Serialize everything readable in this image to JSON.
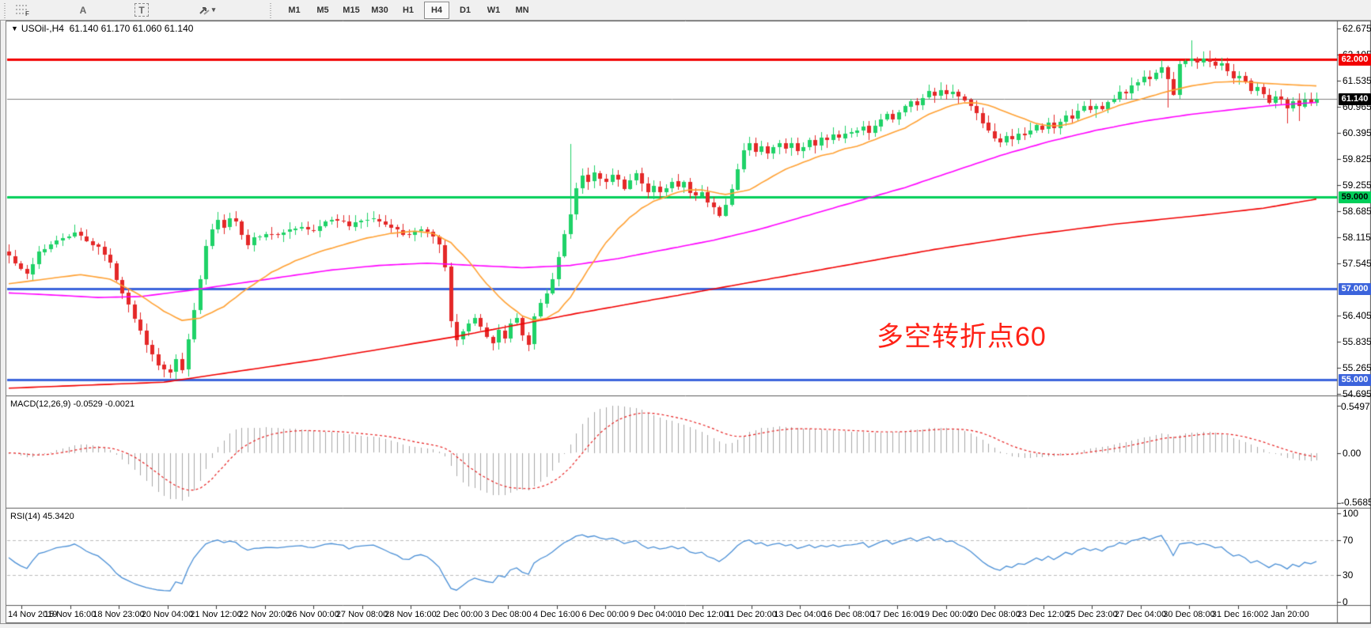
{
  "toolbar": {
    "tools": [
      {
        "name": "fibonacci",
        "glyph": "F"
      },
      {
        "name": "text-label",
        "glyph": "A"
      },
      {
        "name": "text",
        "glyph": "T"
      },
      {
        "name": "arrows",
        "glyph": "arrows"
      }
    ],
    "timeframes": [
      {
        "label": "M1",
        "active": false
      },
      {
        "label": "M5",
        "active": false
      },
      {
        "label": "M15",
        "active": false
      },
      {
        "label": "M30",
        "active": false
      },
      {
        "label": "H1",
        "active": false
      },
      {
        "label": "H4",
        "active": true
      },
      {
        "label": "D1",
        "active": false
      },
      {
        "label": "W1",
        "active": false
      },
      {
        "label": "MN",
        "active": false
      }
    ]
  },
  "title": {
    "symbol": "USOil-,H4",
    "ohlc": "61.140 61.170 61.060 61.140"
  },
  "annotation": {
    "text": "多空转折点60",
    "color": "#ff2116"
  },
  "price_axis": {
    "ticks": [
      62.675,
      62.105,
      61.535,
      60.965,
      60.395,
      59.825,
      59.255,
      58.685,
      58.115,
      57.545,
      56.405,
      55.835,
      55.265,
      54.695
    ],
    "decimals": 3
  },
  "hlines": [
    {
      "value": 62.0,
      "label": "62.000",
      "color": "#f20000",
      "text_color": "#ffffff"
    },
    {
      "value": 59.0,
      "label": "59.000",
      "color": "#00cf5a",
      "text_color": "#000000"
    },
    {
      "value": 57.0,
      "label": "57.000",
      "color": "#3c64dc",
      "text_color": "#ffffff"
    },
    {
      "value": 55.0,
      "label": "55.000",
      "color": "#3c64dc",
      "text_color": "#ffffff"
    }
  ],
  "current_price": {
    "value": 61.14,
    "label": "61.140",
    "line_color": "#808080",
    "badge_bg": "#000000",
    "badge_text": "#ffffff"
  },
  "macd": {
    "name": "MACD(12,26,9)",
    "values": "-0.0529 -0.0021",
    "axis_max": "0.5497",
    "axis_zero": "0.00",
    "axis_min": "-0.5685",
    "hist_color": "#a8a8a8",
    "signal_color": "#e82020"
  },
  "rsi": {
    "name": "RSI(14)",
    "value": "45.3420",
    "axis": [
      "100",
      "70",
      "30",
      "0"
    ],
    "levels": [
      70,
      30
    ],
    "line_color": "#4a8fd6",
    "level_color": "#bdbdbd"
  },
  "chart_data": {
    "type": "candlestick-with-indicators",
    "symbol": "USOil-",
    "period": "H4",
    "bars": 220,
    "ylim": [
      54.695,
      62.675
    ],
    "y_tick_step": 0.57,
    "time_labels": [
      "14 Nov 2019",
      "15 Nov 16:00",
      "18 Nov 23:00",
      "20 Nov 04:00",
      "21 Nov 12:00",
      "22 Nov 20:00",
      "26 Nov 00:00",
      "27 Nov 08:00",
      "28 Nov 16:00",
      "2 Dec 00:00",
      "3 Dec 08:00",
      "4 Dec 16:00",
      "6 Dec 00:00",
      "9 Dec 04:00",
      "10 Dec 12:00",
      "11 Dec 20:00",
      "13 Dec 04:00",
      "16 Dec 08:00",
      "17 Dec 16:00",
      "19 Dec 00:00",
      "20 Dec 08:00",
      "23 Dec 12:00",
      "25 Dec 23:00",
      "27 Dec 04:00",
      "30 Dec 08:00",
      "31 Dec 16:00",
      "2 Jan 20:00"
    ],
    "up_color": "#1fd268",
    "down_color": "#e42828",
    "close_waypoints": [
      [
        0,
        57.7
      ],
      [
        2,
        57.4
      ],
      [
        3,
        57.3
      ],
      [
        5,
        57.8
      ],
      [
        7,
        57.95
      ],
      [
        9,
        58.1
      ],
      [
        11,
        58.2
      ],
      [
        13,
        58.05
      ],
      [
        15,
        57.9
      ],
      [
        17,
        57.55
      ],
      [
        19,
        56.9
      ],
      [
        21,
        56.35
      ],
      [
        23,
        55.8
      ],
      [
        25,
        55.35
      ],
      [
        27,
        55.15
      ],
      [
        28,
        55.45
      ],
      [
        29,
        55.25
      ],
      [
        30,
        55.9
      ],
      [
        31,
        56.5
      ],
      [
        32,
        57.2
      ],
      [
        33,
        57.9
      ],
      [
        34,
        58.3
      ],
      [
        35,
        58.5
      ],
      [
        36,
        58.35
      ],
      [
        37,
        58.55
      ],
      [
        38,
        58.45
      ],
      [
        39,
        58.15
      ],
      [
        40,
        57.95
      ],
      [
        41,
        58.1
      ],
      [
        43,
        58.2
      ],
      [
        45,
        58.15
      ],
      [
        47,
        58.3
      ],
      [
        49,
        58.35
      ],
      [
        51,
        58.25
      ],
      [
        53,
        58.45
      ],
      [
        55,
        58.5
      ],
      [
        57,
        58.35
      ],
      [
        59,
        58.5
      ],
      [
        61,
        58.55
      ],
      [
        63,
        58.4
      ],
      [
        65,
        58.25
      ],
      [
        67,
        58.15
      ],
      [
        69,
        58.3
      ],
      [
        71,
        58.15
      ],
      [
        72,
        57.95
      ],
      [
        73,
        57.45
      ],
      [
        74,
        56.3
      ],
      [
        75,
        55.85
      ],
      [
        76,
        56.05
      ],
      [
        77,
        56.2
      ],
      [
        78,
        56.35
      ],
      [
        79,
        56.15
      ],
      [
        80,
        55.95
      ],
      [
        81,
        55.8
      ],
      [
        82,
        56.1
      ],
      [
        83,
        55.9
      ],
      [
        84,
        56.25
      ],
      [
        85,
        56.35
      ],
      [
        86,
        55.95
      ],
      [
        87,
        55.75
      ],
      [
        88,
        56.35
      ],
      [
        89,
        56.65
      ],
      [
        90,
        56.9
      ],
      [
        91,
        57.2
      ],
      [
        92,
        57.7
      ],
      [
        93,
        58.2
      ],
      [
        94,
        58.6
      ],
      [
        95,
        59.2
      ],
      [
        96,
        59.45
      ],
      [
        97,
        59.3
      ],
      [
        98,
        59.55
      ],
      [
        99,
        59.4
      ],
      [
        100,
        59.3
      ],
      [
        101,
        59.5
      ],
      [
        102,
        59.35
      ],
      [
        103,
        59.2
      ],
      [
        104,
        59.35
      ],
      [
        105,
        59.5
      ],
      [
        106,
        59.3
      ],
      [
        107,
        59.1
      ],
      [
        108,
        59.25
      ],
      [
        109,
        59.1
      ],
      [
        110,
        59.2
      ],
      [
        111,
        59.35
      ],
      [
        112,
        59.2
      ],
      [
        113,
        59.3
      ],
      [
        114,
        59.1
      ],
      [
        115,
        59.0
      ],
      [
        116,
        59.1
      ],
      [
        117,
        58.9
      ],
      [
        118,
        58.75
      ],
      [
        119,
        58.6
      ],
      [
        120,
        58.85
      ],
      [
        121,
        59.15
      ],
      [
        122,
        59.6
      ],
      [
        123,
        60.0
      ],
      [
        124,
        60.15
      ],
      [
        125,
        60.0
      ],
      [
        126,
        60.1
      ],
      [
        127,
        59.95
      ],
      [
        128,
        60.1
      ],
      [
        129,
        60.2
      ],
      [
        130,
        60.05
      ],
      [
        131,
        60.15
      ],
      [
        132,
        60.0
      ],
      [
        133,
        60.1
      ],
      [
        134,
        60.25
      ],
      [
        135,
        60.15
      ],
      [
        136,
        60.3
      ],
      [
        137,
        60.2
      ],
      [
        138,
        60.35
      ],
      [
        139,
        60.25
      ],
      [
        140,
        60.4
      ],
      [
        142,
        60.45
      ],
      [
        143,
        60.55
      ],
      [
        144,
        60.4
      ],
      [
        145,
        60.55
      ],
      [
        146,
        60.7
      ],
      [
        147,
        60.8
      ],
      [
        148,
        60.7
      ],
      [
        149,
        60.85
      ],
      [
        150,
        60.95
      ],
      [
        151,
        61.1
      ],
      [
        152,
        61.0
      ],
      [
        153,
        61.15
      ],
      [
        154,
        61.3
      ],
      [
        155,
        61.2
      ],
      [
        156,
        61.35
      ],
      [
        157,
        61.25
      ],
      [
        158,
        61.3
      ],
      [
        159,
        61.2
      ],
      [
        160,
        61.1
      ],
      [
        161,
        61.0
      ],
      [
        162,
        60.85
      ],
      [
        163,
        60.6
      ],
      [
        164,
        60.45
      ],
      [
        165,
        60.3
      ],
      [
        166,
        60.2
      ],
      [
        167,
        60.35
      ],
      [
        168,
        60.25
      ],
      [
        169,
        60.4
      ],
      [
        170,
        60.35
      ],
      [
        171,
        60.45
      ],
      [
        172,
        60.55
      ],
      [
        173,
        60.45
      ],
      [
        174,
        60.6
      ],
      [
        175,
        60.5
      ],
      [
        176,
        60.65
      ],
      [
        177,
        60.75
      ],
      [
        178,
        60.7
      ],
      [
        179,
        60.85
      ],
      [
        180,
        60.95
      ],
      [
        181,
        60.9
      ],
      [
        182,
        61.0
      ],
      [
        183,
        60.9
      ],
      [
        184,
        61.05
      ],
      [
        185,
        61.15
      ],
      [
        186,
        61.3
      ],
      [
        187,
        61.25
      ],
      [
        188,
        61.4
      ],
      [
        189,
        61.5
      ],
      [
        190,
        61.6
      ],
      [
        191,
        61.55
      ],
      [
        192,
        61.7
      ],
      [
        193,
        61.85
      ],
      [
        194,
        61.6
      ],
      [
        195,
        61.25
      ],
      [
        196,
        61.9
      ],
      [
        197,
        61.95
      ],
      [
        198,
        62.0
      ],
      [
        199,
        61.9
      ],
      [
        200,
        62.0
      ],
      [
        201,
        61.95
      ],
      [
        202,
        61.85
      ],
      [
        203,
        61.9
      ],
      [
        204,
        61.75
      ],
      [
        205,
        61.6
      ],
      [
        206,
        61.65
      ],
      [
        207,
        61.5
      ],
      [
        208,
        61.3
      ],
      [
        209,
        61.4
      ],
      [
        210,
        61.2
      ],
      [
        211,
        61.05
      ],
      [
        212,
        61.2
      ],
      [
        213,
        61.1
      ],
      [
        214,
        60.95
      ],
      [
        215,
        61.1
      ],
      [
        216,
        61.0
      ],
      [
        217,
        61.15
      ],
      [
        218,
        61.05
      ],
      [
        219,
        61.14
      ]
    ],
    "spikes": [
      {
        "i": 26,
        "low": 55.05
      },
      {
        "i": 94,
        "high": 60.15
      },
      {
        "i": 198,
        "high": 62.42
      },
      {
        "i": 194,
        "low": 60.95
      },
      {
        "i": 214,
        "low": 60.6
      },
      {
        "i": 216,
        "low": 60.65
      }
    ],
    "ma_fast": {
      "color": "#ffa133",
      "points": [
        [
          0,
          57.1
        ],
        [
          6,
          57.2
        ],
        [
          12,
          57.3
        ],
        [
          17,
          57.2
        ],
        [
          22,
          56.85
        ],
        [
          26,
          56.5
        ],
        [
          29,
          56.3
        ],
        [
          32,
          56.35
        ],
        [
          36,
          56.6
        ],
        [
          40,
          57.0
        ],
        [
          44,
          57.35
        ],
        [
          48,
          57.6
        ],
        [
          52,
          57.8
        ],
        [
          56,
          57.95
        ],
        [
          60,
          58.1
        ],
        [
          64,
          58.2
        ],
        [
          68,
          58.25
        ],
        [
          71,
          58.2
        ],
        [
          74,
          58.0
        ],
        [
          77,
          57.6
        ],
        [
          80,
          57.1
        ],
        [
          83,
          56.7
        ],
        [
          86,
          56.4
        ],
        [
          88,
          56.3
        ],
        [
          90,
          56.35
        ],
        [
          92,
          56.5
        ],
        [
          94,
          56.8
        ],
        [
          96,
          57.2
        ],
        [
          98,
          57.6
        ],
        [
          100,
          58.0
        ],
        [
          102,
          58.3
        ],
        [
          104,
          58.55
        ],
        [
          106,
          58.75
        ],
        [
          108,
          58.9
        ],
        [
          110,
          59.0
        ],
        [
          112,
          59.1
        ],
        [
          114,
          59.15
        ],
        [
          116,
          59.15
        ],
        [
          118,
          59.1
        ],
        [
          120,
          59.05
        ],
        [
          124,
          59.15
        ],
        [
          126,
          59.3
        ],
        [
          128,
          59.45
        ],
        [
          130,
          59.6
        ],
        [
          132,
          59.7
        ],
        [
          134,
          59.8
        ],
        [
          136,
          59.9
        ],
        [
          138,
          59.95
        ],
        [
          140,
          60.05
        ],
        [
          142,
          60.1
        ],
        [
          144,
          60.2
        ],
        [
          146,
          60.3
        ],
        [
          148,
          60.4
        ],
        [
          150,
          60.5
        ],
        [
          152,
          60.65
        ],
        [
          154,
          60.8
        ],
        [
          156,
          60.9
        ],
        [
          158,
          61.0
        ],
        [
          160,
          61.05
        ],
        [
          162,
          61.05
        ],
        [
          164,
          61.0
        ],
        [
          166,
          60.9
        ],
        [
          168,
          60.8
        ],
        [
          170,
          60.7
        ],
        [
          172,
          60.6
        ],
        [
          174,
          60.55
        ],
        [
          176,
          60.55
        ],
        [
          178,
          60.6
        ],
        [
          180,
          60.7
        ],
        [
          182,
          60.8
        ],
        [
          184,
          60.9
        ],
        [
          186,
          61.0
        ],
        [
          190,
          61.15
        ],
        [
          194,
          61.3
        ],
        [
          198,
          61.42
        ],
        [
          202,
          61.5
        ],
        [
          206,
          61.52
        ],
        [
          210,
          61.48
        ],
        [
          214,
          61.45
        ],
        [
          219,
          61.42
        ]
      ]
    },
    "ma_mid": {
      "color": "#ff00ff",
      "points": [
        [
          0,
          56.9
        ],
        [
          8,
          56.85
        ],
        [
          15,
          56.8
        ],
        [
          22,
          56.82
        ],
        [
          30,
          56.95
        ],
        [
          38,
          57.1
        ],
        [
          46,
          57.25
        ],
        [
          54,
          57.4
        ],
        [
          62,
          57.5
        ],
        [
          70,
          57.55
        ],
        [
          78,
          57.5
        ],
        [
          86,
          57.45
        ],
        [
          94,
          57.5
        ],
        [
          102,
          57.65
        ],
        [
          110,
          57.85
        ],
        [
          118,
          58.05
        ],
        [
          126,
          58.3
        ],
        [
          134,
          58.6
        ],
        [
          142,
          58.9
        ],
        [
          150,
          59.2
        ],
        [
          158,
          59.55
        ],
        [
          166,
          59.9
        ],
        [
          174,
          60.2
        ],
        [
          182,
          60.45
        ],
        [
          190,
          60.65
        ],
        [
          198,
          60.8
        ],
        [
          206,
          60.92
        ],
        [
          212,
          61.0
        ],
        [
          219,
          61.06
        ]
      ]
    },
    "ma_slow": {
      "color": "#f20000",
      "points": [
        [
          0,
          54.82
        ],
        [
          26,
          54.95
        ],
        [
          52,
          55.45
        ],
        [
          75,
          55.95
        ],
        [
          95,
          56.45
        ],
        [
          110,
          56.8
        ],
        [
          125,
          57.15
        ],
        [
          140,
          57.5
        ],
        [
          155,
          57.85
        ],
        [
          170,
          58.15
        ],
        [
          185,
          58.4
        ],
        [
          200,
          58.6
        ],
        [
          210,
          58.75
        ],
        [
          219,
          58.95
        ]
      ]
    }
  }
}
